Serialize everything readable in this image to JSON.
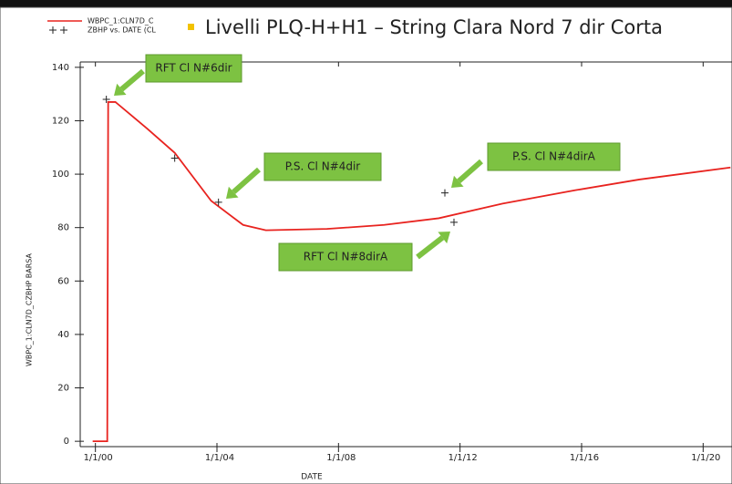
{
  "chart_data": {
    "type": "line",
    "title": "Livelli PLQ-H+H1 – String Clara Nord 7 dir Corta",
    "x_label": "DATE",
    "y_label": "WBPC_1:CLN7D_CZBHP  BARSA",
    "xlim": [
      1999.5,
      2021.4
    ],
    "ylim": [
      -2,
      142
    ],
    "xticks": [
      {
        "value": 2000,
        "label": "1/1/00"
      },
      {
        "value": 2004,
        "label": "1/1/04"
      },
      {
        "value": 2008,
        "label": "1/1/08"
      },
      {
        "value": 2012,
        "label": "1/1/12"
      },
      {
        "value": 2016,
        "label": "1/1/16"
      },
      {
        "value": 2020,
        "label": "1/1/20"
      }
    ],
    "yticks": [
      0,
      20,
      40,
      60,
      80,
      100,
      120,
      140
    ],
    "series": [
      {
        "name": "WBPC_1:CLN7D_C",
        "color": "#e8231f",
        "style": "line",
        "x": [
          1999.91,
          2000.39,
          2000.42,
          2000.66,
          2001.71,
          2002.61,
          2003.81,
          2004.86,
          2005.61,
          2007.62,
          2009.5,
          2011.3,
          2013.4,
          2015.8,
          2017.9,
          2020.9
        ],
        "values": [
          0,
          0,
          127,
          127,
          117,
          108,
          90,
          81,
          79,
          79.5,
          81,
          83.5,
          89,
          94,
          98,
          102.5
        ]
      },
      {
        "name": "ZBHP vs. DATE (CL",
        "color": "#222222",
        "style": "markers",
        "x": [
          2000.36,
          2002.61,
          2004.05,
          2011.5,
          2011.8
        ],
        "values": [
          128,
          106,
          89.5,
          93,
          82
        ]
      }
    ],
    "annotations": [
      "RFT Cl N#6dir",
      "P.S. Cl N#4dir",
      "P.S. Cl N#4dirA",
      "RFT Cl N#8dirA"
    ]
  }
}
